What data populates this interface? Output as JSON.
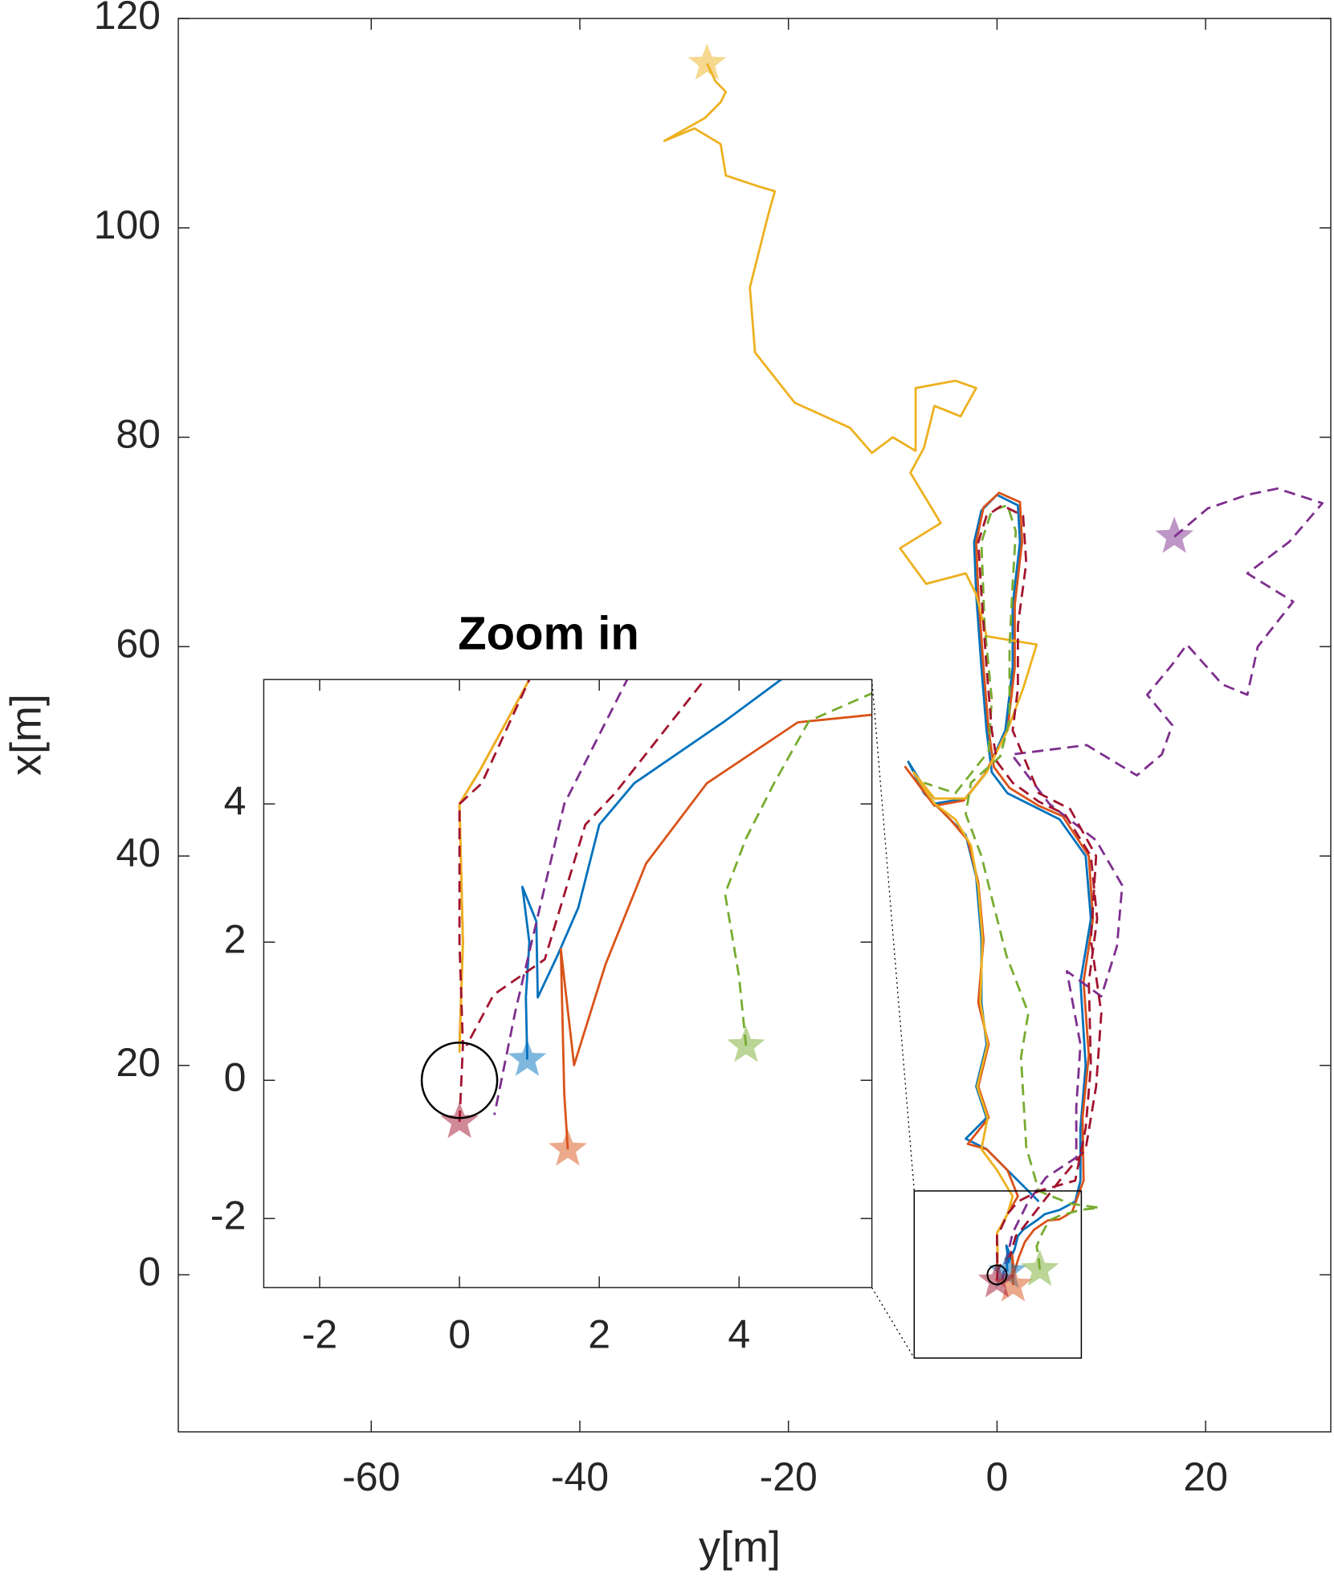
{
  "chart_data": {
    "type": "line",
    "xlabel": "y[m]",
    "ylabel": "x[m]",
    "xlim": [
      -78.5,
      32
    ],
    "ylim": [
      -15,
      120
    ],
    "xticks": [
      -60,
      -40,
      -20,
      0,
      20
    ],
    "yticks": [
      0,
      20,
      40,
      60,
      80,
      100,
      120
    ],
    "inset": {
      "title": "Zoom in",
      "xlim": [
        -2.8,
        5.9
      ],
      "ylim": [
        -3,
        5.8
      ],
      "xticks": [
        -2,
        0,
        2,
        4
      ],
      "yticks": [
        -2,
        0,
        2,
        4
      ]
    },
    "series": [
      {
        "color": "#0072BD",
        "linestyle": "solid",
        "x": [
          0.97,
          0.95,
          1,
          0.9,
          1.1,
          1.12,
          1.4,
          1.7,
          2,
          2.5,
          3.8,
          4.6,
          6,
          7.5,
          8,
          8,
          8.5,
          8,
          9,
          8.5,
          6,
          4,
          1,
          -0.5,
          -1,
          -1.5,
          -2,
          -2.2,
          -1.5,
          0,
          2,
          2.2,
          1.5,
          1.5,
          0.8,
          -1,
          -3,
          -6,
          -8.5,
          -7,
          -5,
          -3,
          -2,
          -1.5,
          -1.5,
          -1,
          -2,
          -1,
          -3,
          -1,
          1,
          3,
          4
        ],
        "y": [
          0.3,
          1.2,
          2,
          2.8,
          2.3,
          1.2,
          1.8,
          2.5,
          3.7,
          4.3,
          5.2,
          5.8,
          6.2,
          7,
          9,
          14,
          20,
          28,
          34,
          40,
          43.5,
          44.5,
          46,
          48,
          52,
          58,
          65,
          70,
          73,
          74.5,
          73.5,
          70,
          64,
          58,
          52,
          48,
          45.5,
          45,
          49,
          46,
          44,
          42,
          38,
          32,
          26,
          22,
          18,
          15,
          13,
          12,
          10,
          8,
          7
        ]
      },
      {
        "color": "#D95319",
        "linestyle": "solid",
        "x": [
          1.55,
          1.5,
          1.45,
          1.64,
          2.09,
          2.67,
          3.54,
          4.84,
          6,
          7.2,
          8.3,
          8.2,
          8.8,
          8.3,
          9.2,
          8.8,
          6.3,
          4,
          1.2,
          -0.3,
          -0.8,
          -1.3,
          -1.8,
          -2,
          -1.3,
          0.2,
          2.2,
          2.4,
          1.7,
          1.7,
          1,
          -1.2,
          -3.2,
          -6,
          -8.8,
          -6.5,
          -4.5,
          -2.8,
          -1.8,
          -1.3,
          -1.8,
          -0.8,
          -1.8,
          -0.8,
          -2.8,
          -1,
          1,
          2,
          1,
          0.3,
          0,
          0.05,
          0
        ],
        "y": [
          -1,
          -0.2,
          1.9,
          0.22,
          1.68,
          3.14,
          4.3,
          5.18,
          5.3,
          6,
          9,
          15,
          21,
          28,
          34,
          40,
          43.8,
          44.8,
          46.5,
          48.5,
          52,
          58,
          65,
          70,
          73.3,
          74.7,
          73.8,
          70,
          64,
          58,
          52,
          47.8,
          45.3,
          44.8,
          48.5,
          45.5,
          43.5,
          41.5,
          37.5,
          32,
          26,
          22,
          18,
          15,
          12.5,
          12,
          10,
          7.5,
          5.8,
          4.5,
          4,
          2,
          0.5
        ]
      },
      {
        "color": "#EDB120",
        "linestyle": "solid",
        "x": [
          -27.8,
          -27,
          -26,
          -26.5,
          -28,
          -31.9,
          -29,
          -26.5,
          -26,
          -23,
          -21.3,
          -22,
          -23.7,
          -23.2,
          -19.4,
          -14.1,
          -12,
          -10,
          -7.8,
          -7.8,
          -4,
          -2,
          -3.5,
          -6,
          -7,
          -8.3,
          -5.4,
          -9.3,
          -6.8,
          -3,
          -2,
          -1,
          3.8,
          2.5,
          1,
          -1,
          -3,
          -6,
          -8,
          -6,
          -4,
          -2.5,
          -1.8,
          -1.4,
          -1.6,
          -0.9,
          -1.9,
          -0.9,
          -1.5,
          0,
          1.5,
          1,
          0.3,
          0,
          0.05,
          0
        ],
        "y": [
          115.7,
          114,
          113,
          112,
          110.5,
          108.3,
          109.5,
          108,
          105,
          104,
          103.5,
          101,
          94.3,
          88.1,
          83.3,
          80.9,
          78.5,
          80,
          78.7,
          84.7,
          85.4,
          84.7,
          82,
          83,
          79,
          76.6,
          71.8,
          69.4,
          66,
          67,
          65,
          61,
          60.2,
          56,
          52,
          48,
          45.5,
          45.5,
          48,
          45,
          43.5,
          41,
          37,
          32,
          26,
          22,
          18,
          15,
          12,
          10,
          7.5,
          5.8,
          4.5,
          4,
          2,
          0.4
        ]
      },
      {
        "color": "#7E2F8E",
        "linestyle": "dashed",
        "x": [
          17,
          20.2,
          24,
          26.9,
          31.2,
          28,
          24,
          28.4,
          25,
          24,
          21.6,
          18.2,
          16.8,
          14.4,
          16.8,
          15.8,
          13.4,
          8.6,
          1.4,
          5,
          9.5,
          12,
          11.5,
          10,
          6.7,
          8,
          7.6,
          7.6,
          4.7,
          3,
          1.5,
          0.8,
          0.5
        ],
        "y": [
          70.5,
          73.2,
          74.5,
          75.1,
          73.7,
          70,
          67,
          64.3,
          60,
          55.4,
          56.4,
          60.2,
          58.3,
          55.4,
          52.5,
          49.7,
          47.7,
          50.6,
          49.7,
          45,
          41.5,
          37.2,
          31.4,
          26.6,
          29,
          22,
          16,
          11.2,
          9.3,
          7,
          4,
          1,
          -0.5
        ]
      },
      {
        "color": "#77AC30",
        "linestyle": "dashed",
        "x": [
          4.1,
          4,
          3.8,
          4.1,
          4.5,
          5,
          5.9,
          8,
          9.8,
          7,
          4,
          2.8,
          2.3,
          3,
          0.9,
          -0.5,
          -1.5,
          -3,
          -2.5,
          0.3,
          1.2,
          1.2,
          1.5,
          1.8,
          1,
          -0.5,
          -1.5,
          -1.2,
          -0.5,
          -0.8,
          -4,
          -7
        ],
        "y": [
          0.5,
          1.5,
          2.7,
          3.5,
          4.3,
          5.2,
          5.6,
          6.2,
          6.4,
          6.8,
          8,
          12.2,
          20.8,
          25,
          30.5,
          36,
          40,
          44,
          47,
          49.5,
          53,
          60,
          66,
          71,
          73.5,
          73,
          70,
          62,
          55,
          50,
          46,
          47
        ]
      },
      {
        "color": "#A2142F",
        "linestyle": "dashed",
        "x": [
          0,
          0.05,
          0,
          0,
          0.32,
          1,
          2,
          4,
          7.5,
          8.5,
          9,
          8.8,
          9.6,
          9,
          6.5,
          4,
          1.5,
          0,
          -0.5,
          -1,
          -1.5,
          -1.8,
          -1,
          0.5,
          2.5,
          2.8,
          2,
          2,
          1.5,
          4,
          7,
          9.5,
          9,
          10,
          9.5,
          8.5,
          6,
          2.23,
          1.8,
          1.22,
          0.49,
          0.1
        ],
        "y": [
          -0.6,
          0.5,
          2,
          4,
          4.3,
          5.8,
          7,
          8,
          9,
          14,
          20,
          28,
          34,
          40,
          44,
          45.2,
          47,
          49,
          52,
          58,
          65,
          70,
          72.5,
          73.5,
          72.5,
          68,
          62,
          56,
          52,
          46,
          44.5,
          40,
          32,
          25,
          18,
          12,
          9,
          4.16,
          3.7,
          1.75,
          1.24,
          0.5
        ]
      }
    ]
  }
}
